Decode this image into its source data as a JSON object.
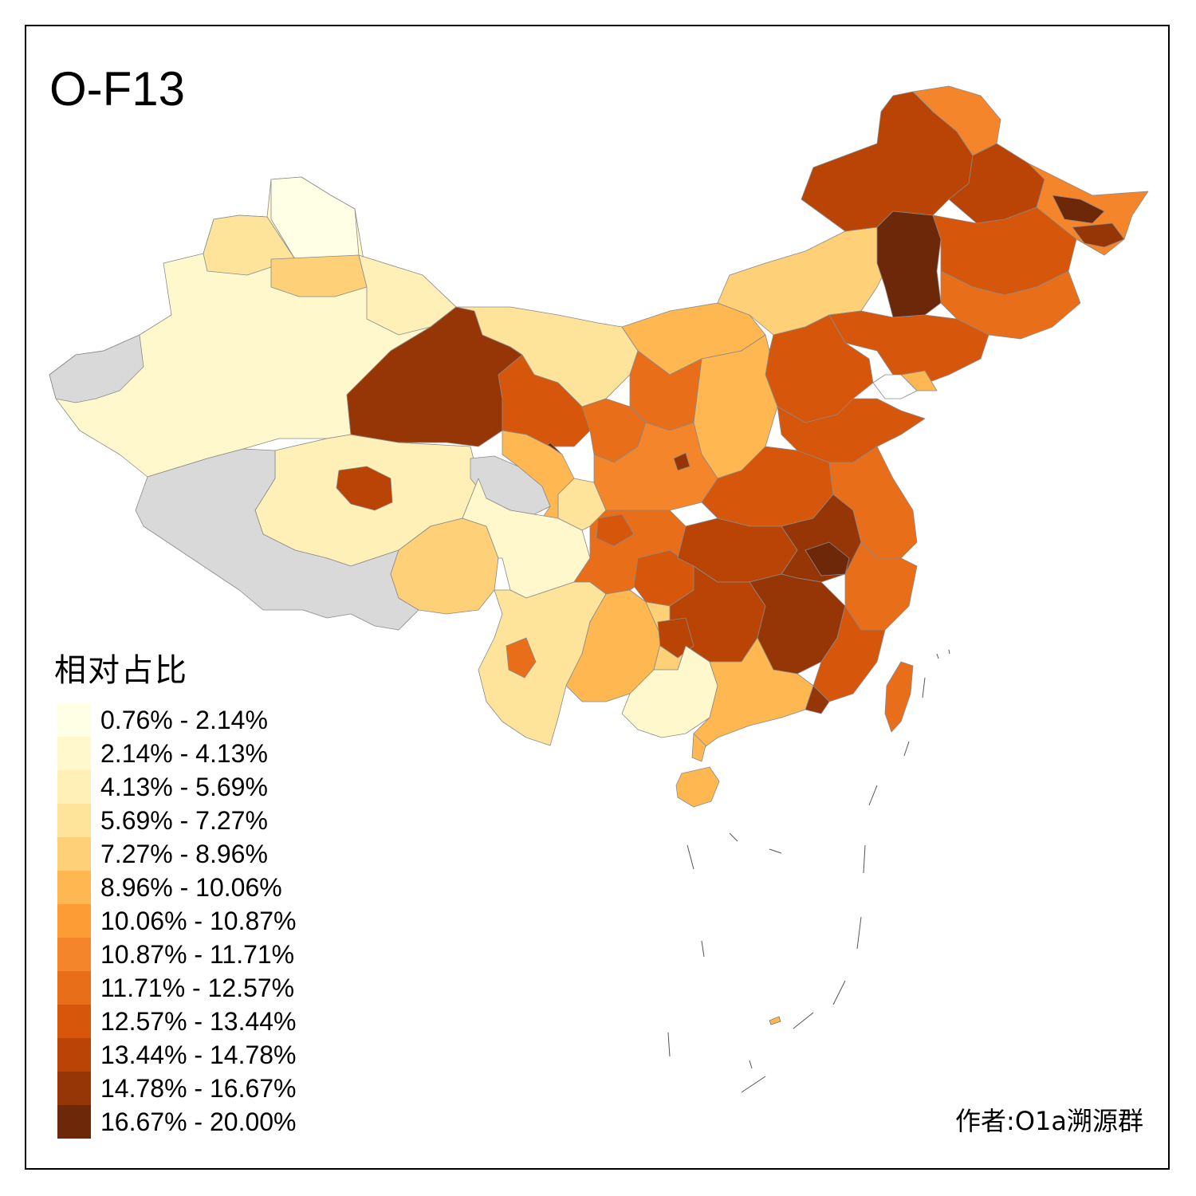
{
  "title": "O-F13",
  "legend": {
    "title": "相对占比",
    "items": [
      {
        "label": "0.76% - 2.14%",
        "color": "#FFFFE5"
      },
      {
        "label": "2.14% - 4.13%",
        "color": "#FFF8CC"
      },
      {
        "label": "4.13% - 5.69%",
        "color": "#FEF0B7"
      },
      {
        "label": "5.69% - 7.27%",
        "color": "#FEE39A"
      },
      {
        "label": "7.27% - 8.96%",
        "color": "#FED077"
      },
      {
        "label": "8.96% - 10.06%",
        "color": "#FEB751"
      },
      {
        "label": "10.06% - 10.87%",
        "color": "#FD9B35"
      },
      {
        "label": "10.87% - 11.71%",
        "color": "#F5852A"
      },
      {
        "label": "11.71% - 12.57%",
        "color": "#E86E1A"
      },
      {
        "label": "12.57% - 13.44%",
        "color": "#D6570C"
      },
      {
        "label": "13.44% - 14.78%",
        "color": "#BA4406"
      },
      {
        "label": "14.78% - 16.67%",
        "color": "#963506"
      },
      {
        "label": "16.67% - 20.00%",
        "color": "#6D2709"
      }
    ]
  },
  "no_data_color": "#D9D9D9",
  "credit": "作者:O1a溯源群"
}
